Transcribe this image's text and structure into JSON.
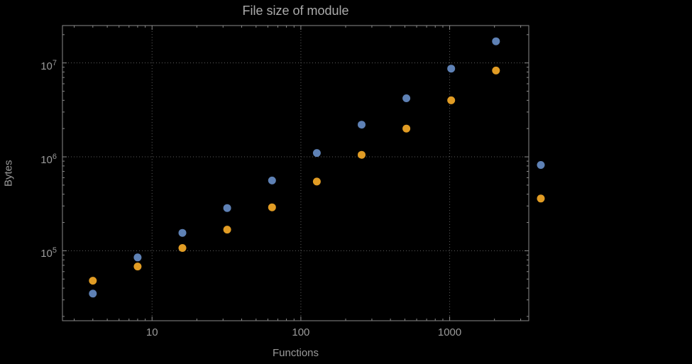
{
  "window": {
    "background": "#000000"
  },
  "colors": {
    "background": "#000000",
    "frame": "#8a8a8a",
    "tick": "#8a8a8a",
    "grid": "#5e5e5e",
    "text": "#9a9a9a",
    "title": "#ababab",
    "series_blue": "#5e81b5",
    "series_orange": "#e19c24"
  },
  "chart_data": {
    "type": "scatter",
    "title": "File size of module",
    "xlabel": "Functions",
    "ylabel": "Bytes",
    "xscale": "log",
    "yscale": "log",
    "xlim": [
      2.5,
      3400
    ],
    "ylim": [
      18000,
      25000000
    ],
    "grid": "dotted-at-major-ticks",
    "legend": "none",
    "marker": "filled-circle",
    "marker_radius_px": 5.5,
    "x_ticks": [
      {
        "value": 10,
        "label": "10"
      },
      {
        "value": 100,
        "label": "100"
      },
      {
        "value": 1000,
        "label": "1000"
      }
    ],
    "y_ticks": [
      {
        "value": 100000,
        "base": "10",
        "exponent": "5"
      },
      {
        "value": 1000000,
        "base": "10",
        "exponent": "6"
      },
      {
        "value": 10000000,
        "base": "10",
        "exponent": "7"
      }
    ],
    "series": [
      {
        "name": "blue",
        "color": "#5e81b5",
        "points": [
          [
            4,
            35000
          ],
          [
            8,
            85000
          ],
          [
            16,
            155000
          ],
          [
            32,
            285000
          ],
          [
            64,
            560000
          ],
          [
            128,
            1100000
          ],
          [
            256,
            2200000
          ],
          [
            512,
            4200000
          ],
          [
            1024,
            8700000
          ],
          [
            2048,
            17000000
          ],
          [
            4096,
            820000
          ]
        ]
      },
      {
        "name": "orange",
        "color": "#e19c24",
        "points": [
          [
            4,
            48000
          ],
          [
            8,
            68000
          ],
          [
            16,
            107000
          ],
          [
            32,
            168000
          ],
          [
            64,
            290000
          ],
          [
            128,
            545000
          ],
          [
            256,
            1050000
          ],
          [
            512,
            2000000
          ],
          [
            1024,
            4000000
          ],
          [
            2048,
            8300000
          ],
          [
            4096,
            360000
          ]
        ]
      }
    ]
  }
}
